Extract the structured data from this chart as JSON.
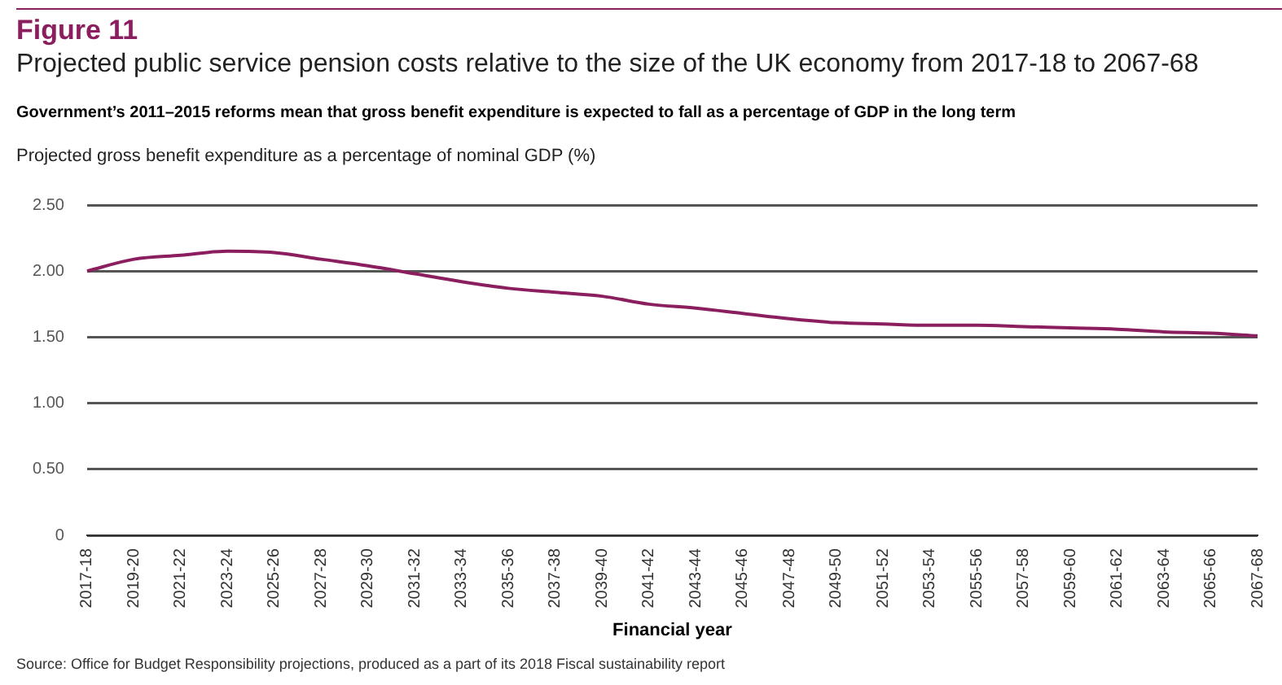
{
  "chart_data": {
    "type": "line",
    "title": "Figure 11",
    "subtitle": "Projected public service pension costs relative to the size of the UK economy from 2017-18 to 2067-68",
    "annotations": [
      "Government’s 2011–2015 reforms mean that gross benefit expenditure is expected to fall as a percentage of GDP in the long term",
      "Source: Office for Budget Responsibility projections, produced as a part of its 2018 Fiscal sustainability report"
    ],
    "ylabel": "Projected gross benefit expenditure as a percentage of nominal GDP (%)",
    "xlabel": "Financial year",
    "categories": [
      "2017-18",
      "2019-20",
      "2021-22",
      "2023-24",
      "2025-26",
      "2027-28",
      "2029-30",
      "2031-32",
      "2033-34",
      "2035-36",
      "2037-38",
      "2039-40",
      "2041-42",
      "2043-44",
      "2045-46",
      "2047-48",
      "2049-50",
      "2051-52",
      "2053-54",
      "2055-56",
      "2057-58",
      "2059-60",
      "2061-62",
      "2063-64",
      "2065-66",
      "2067-68"
    ],
    "series": [
      {
        "color": "#8b1e5e",
        "values": [
          2.0,
          2.09,
          2.12,
          2.15,
          2.14,
          2.09,
          2.04,
          1.98,
          1.92,
          1.87,
          1.84,
          1.81,
          1.75,
          1.72,
          1.68,
          1.64,
          1.61,
          1.6,
          1.59,
          1.59,
          1.58,
          1.57,
          1.56,
          1.54,
          1.53,
          1.51
        ]
      }
    ],
    "ylim": [
      0,
      2.5
    ],
    "yticks": [
      0,
      {
        "value": 0.5,
        "label": "0.50"
      },
      {
        "value": 1,
        "label": "1.00"
      },
      {
        "value": 1.5,
        "label": "1.50"
      },
      {
        "value": 2,
        "label": "2.00"
      },
      {
        "value": 2.5,
        "label": "2.50"
      }
    ],
    "grid": "y",
    "legend": false,
    "marker": "none",
    "line_style": "solid"
  }
}
